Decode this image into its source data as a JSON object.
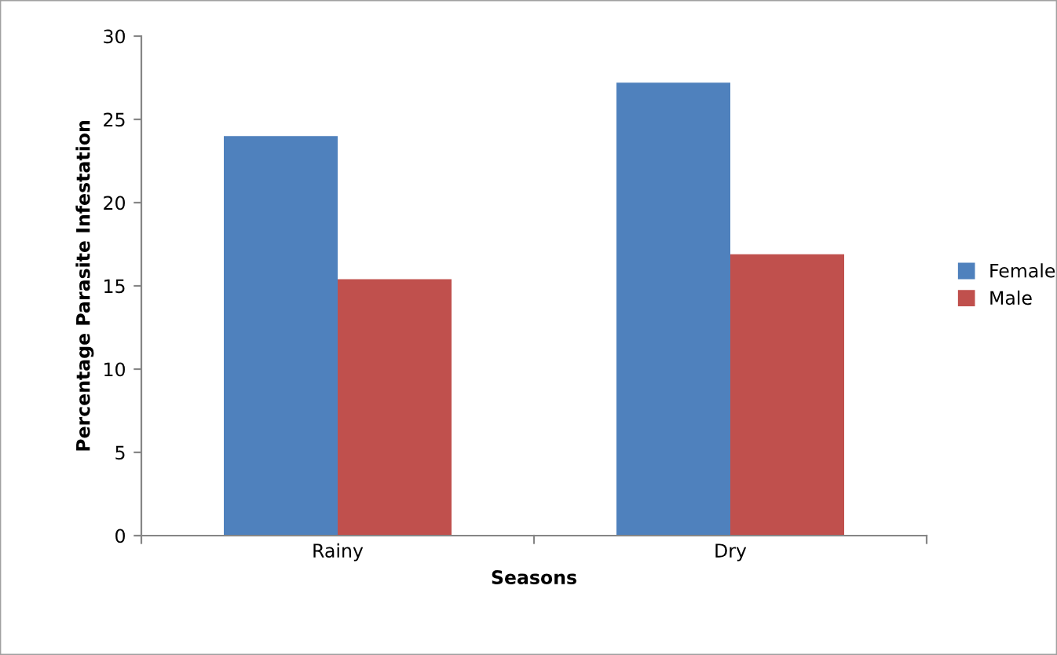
{
  "chart_data": {
    "type": "bar",
    "xlabel": "Seasons",
    "ylabel": "Percentage Parasite Infestation",
    "categories": [
      "Rainy",
      "Dry"
    ],
    "series": [
      {
        "name": "Female",
        "color": "#4f81bd",
        "values": [
          24,
          27.2
        ]
      },
      {
        "name": "Male",
        "color": "#c0504d",
        "values": [
          15.4,
          16.9
        ]
      }
    ],
    "ylim": [
      0,
      30
    ],
    "yticks": [
      0,
      5,
      10,
      15,
      20,
      25,
      30
    ],
    "grid": false,
    "legend": "right"
  }
}
